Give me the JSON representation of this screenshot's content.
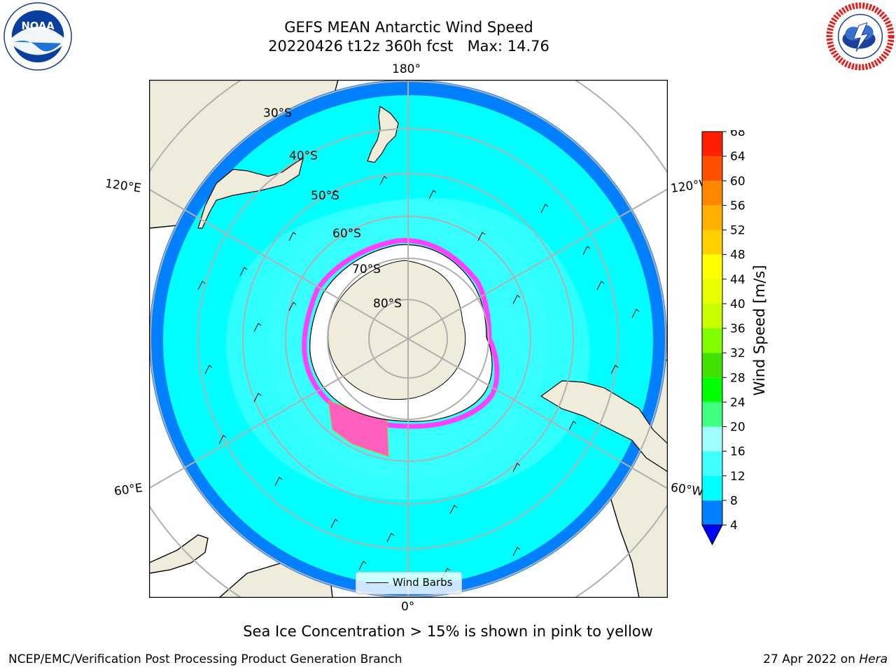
{
  "title": {
    "line1": "GEFS MEAN Antarctic Wind Speed",
    "line2": "20220426 t12z 360h fcst   Max: 14.76"
  },
  "logos": {
    "left": "noaa-logo",
    "right": "national-weather-service-logo"
  },
  "map": {
    "projection": "south-polar-stereographic",
    "longitude_labels": {
      "top": "180°",
      "bottom": "0°",
      "upper_left": "120°E",
      "upper_right": "120°W",
      "lower_left": "60°E",
      "lower_right": "60°W"
    },
    "latitude_labels": [
      "30°S",
      "40°S",
      "50°S",
      "60°S",
      "70°S",
      "80°S"
    ],
    "legend": {
      "label": "Wind Barbs"
    },
    "colors": {
      "land": "#efecdc",
      "ice_shelf": "#ffffff",
      "sea_ice_low": "#ff00ff",
      "sea_ice_high": "#ffff00",
      "grid": "#b0b0b0"
    }
  },
  "colorbar": {
    "label": "Wind Speed [m/s]",
    "ticks": [
      "4",
      "8",
      "12",
      "16",
      "20",
      "24",
      "28",
      "32",
      "36",
      "40",
      "44",
      "48",
      "52",
      "56",
      "60",
      "64",
      "68"
    ],
    "colors": [
      "#0080ff",
      "#00ffff",
      "#40ffff",
      "#a0ffff",
      "#40ff80",
      "#00ff00",
      "#40e000",
      "#80ff00",
      "#c8ff00",
      "#e8ff00",
      "#ffff00",
      "#ffd000",
      "#ffb000",
      "#ff8800",
      "#ff5000",
      "#ff2000"
    ],
    "underflow_color": "#0000ff"
  },
  "caption": "Sea Ice Concentration > 15% is shown in pink to yellow",
  "footer": {
    "left": "NCEP/EMC/Verification Post Processing Product Generation Branch",
    "right_prefix": "27 Apr 2022 on ",
    "right_host": "Hera"
  }
}
